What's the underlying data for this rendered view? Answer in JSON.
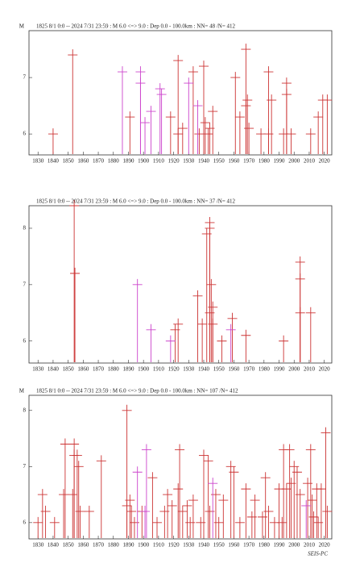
{
  "chart_data": [
    {
      "type": "spike",
      "ylabel": "M",
      "title": "1825 8/1 0:0 -- 2024 7/31 23:59  : M 6.0 <=> 9.0  : Dep 0.0 - 100.0km : NN= 48 /N= 412",
      "xlim": [
        1824,
        2025
      ],
      "xticks": [
        1830,
        1840,
        1850,
        1860,
        1870,
        1880,
        1890,
        1900,
        1910,
        1920,
        1930,
        1940,
        1950,
        1960,
        1970,
        1980,
        1990,
        2000,
        2010,
        2020
      ],
      "ylim": [
        5.63,
        7.83
      ],
      "yticks": [
        6,
        7
      ],
      "series": [
        {
          "color": "#cc3333",
          "x": [
            1840,
            1853,
            1891,
            1918,
            1923,
            1923,
            1926,
            1933,
            1937,
            1940,
            1941,
            1943,
            1944,
            1946,
            1961,
            1964,
            1968,
            1968,
            1969,
            1970,
            1978,
            1983,
            1985,
            1983,
            1993,
            1995,
            1995,
            1998,
            2011,
            2016,
            2019,
            2022
          ],
          "values": [
            6.0,
            7.4,
            6.3,
            6.3,
            7.3,
            6.0,
            6.1,
            7.1,
            6.0,
            7.2,
            6.2,
            6.0,
            6.1,
            6.4,
            7.0,
            6.3,
            7.5,
            6.5,
            6.6,
            6.1,
            6.0,
            7.1,
            6.6,
            6.0,
            6.0,
            6.9,
            6.7,
            6.0,
            6.0,
            6.3,
            6.6,
            6.6
          ]
        },
        {
          "color": "#cc44cc",
          "x": [
            1886,
            1898,
            1898,
            1901,
            1905,
            1911,
            1912,
            1930,
            1936
          ],
          "values": [
            7.1,
            7.1,
            6.9,
            6.2,
            6.4,
            6.8,
            6.7,
            6.9,
            6.5
          ]
        }
      ]
    },
    {
      "type": "spike",
      "title": "1825 8/1 0:0 -- 2024 7/31 23:59  : M 6.0 <=> 9.0  : Dep 0.0 - 100.0km : NN= 37 /N= 412",
      "xlim": [
        1824,
        2025
      ],
      "xticks": [
        1830,
        1840,
        1850,
        1860,
        1870,
        1880,
        1890,
        1900,
        1910,
        1920,
        1930,
        1940,
        1950,
        1960,
        1970,
        1980,
        1990,
        2000,
        2010,
        2020
      ],
      "ylim": [
        5.61,
        8.4
      ],
      "yticks": [
        6,
        7,
        8
      ],
      "series": [
        {
          "color": "#cc3333",
          "x": [
            1854,
            1854.5,
            1921,
            1923,
            1936,
            1939,
            1942,
            1944,
            1944,
            1945,
            1946,
            1946,
            1944,
            1952,
            1959,
            1968,
            1993,
            2004,
            2004,
            2004,
            2011
          ],
          "values": [
            8.4,
            7.2,
            6.2,
            6.3,
            6.8,
            6.3,
            7.9,
            8.1,
            8.0,
            7.0,
            6.6,
            6.3,
            6.5,
            6.0,
            6.4,
            6.1,
            6.0,
            7.4,
            7.1,
            6.5,
            6.5
          ]
        },
        {
          "color": "#cc44cc",
          "x": [
            1896,
            1905,
            1918,
            1958
          ],
          "values": [
            7.0,
            6.2,
            6.0,
            6.2
          ]
        }
      ]
    },
    {
      "type": "spike",
      "ylabel": "M",
      "title": "1825 8/1 0:0 -- 2024 7/31 23:59  : M 6.0 <=> 9.0  : Dep 0.0 - 100.0km : NN= 107 /N= 412",
      "annotation": "SEIS-PC",
      "xlim": [
        1824,
        2025
      ],
      "xticks": [
        1830,
        1840,
        1850,
        1860,
        1870,
        1880,
        1890,
        1900,
        1910,
        1920,
        1930,
        1940,
        1950,
        1960,
        1970,
        1980,
        1990,
        2000,
        2010,
        2020
      ],
      "ylim": [
        5.71,
        8.27
      ],
      "yticks": [
        6,
        7,
        8
      ],
      "series": [
        {
          "color": "#cc3333",
          "x": [
            1830,
            1833,
            1835,
            1841,
            1848,
            1847,
            1854,
            1854,
            1853,
            1856,
            1857,
            1858,
            1864,
            1872,
            1889,
            1889,
            1891,
            1892,
            1894,
            1899,
            1906,
            1909,
            1914,
            1916,
            1919,
            1923,
            1924,
            1926,
            1929,
            1931,
            1933,
            1938,
            1940,
            1943,
            1944,
            1948,
            1950,
            1953,
            1958,
            1960,
            1964,
            1968,
            1972,
            1974,
            1979,
            1981,
            1983,
            1987,
            1990,
            1992,
            1993,
            1995,
            1997,
            1998,
            2000,
            2002,
            2004,
            2009,
            2011,
            2012,
            2013,
            2015,
            2016,
            2018,
            2021,
            2022
          ],
          "values": [
            6.0,
            6.5,
            6.2,
            6.0,
            7.4,
            6.5,
            7.4,
            7.2,
            6.5,
            7.2,
            7.0,
            6.2,
            6.2,
            7.1,
            8.0,
            6.3,
            6.4,
            6.2,
            6.0,
            6.2,
            6.8,
            6.0,
            6.2,
            6.5,
            6.3,
            6.6,
            7.3,
            6.2,
            6.3,
            6.0,
            6.4,
            6.0,
            7.2,
            7.1,
            6.2,
            6.5,
            6.0,
            6.4,
            7.0,
            6.9,
            6.0,
            6.6,
            6.1,
            6.4,
            6.1,
            6.8,
            6.2,
            6.0,
            6.6,
            6.0,
            7.3,
            6.6,
            7.3,
            6.7,
            7.0,
            6.9,
            6.5,
            6.7,
            7.3,
            6.4,
            6.1,
            6.6,
            6.0,
            6.6,
            7.6,
            6.2
          ]
        },
        {
          "color": "#cc44cc",
          "x": [
            1896,
            1901,
            1902,
            1946,
            2008
          ],
          "values": [
            6.9,
            6.2,
            7.3,
            6.7,
            6.3
          ]
        }
      ]
    }
  ]
}
